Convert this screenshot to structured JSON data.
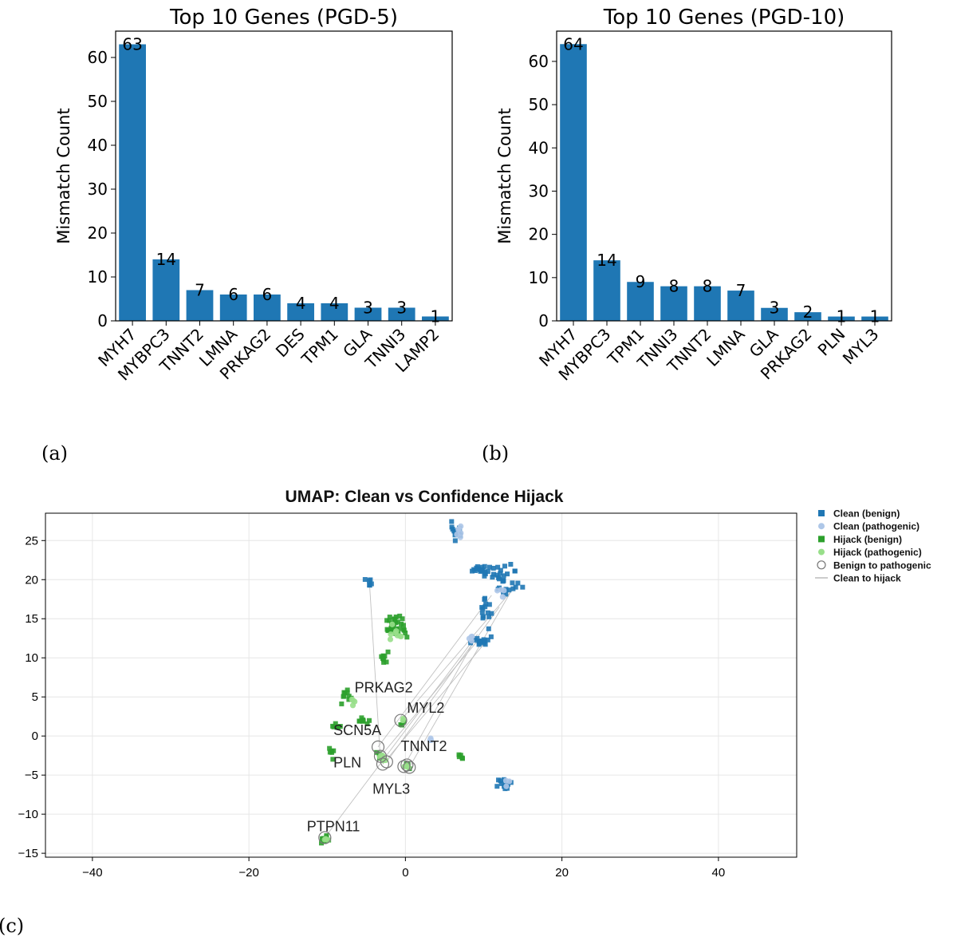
{
  "subfigure_labels": [
    "(a)",
    "(b)",
    "(c)"
  ],
  "chart_data": [
    {
      "type": "bar",
      "title": "Top 10 Genes (PGD-5)",
      "ylabel": "Mismatch Count",
      "xlabel": "",
      "categories": [
        "MYH7",
        "MYBPC3",
        "TNNT2",
        "LMNA",
        "PRKAG2",
        "DES",
        "TPM1",
        "GLA",
        "TNNI3",
        "LAMP2"
      ],
      "values": [
        63,
        14,
        7,
        6,
        6,
        4,
        4,
        3,
        3,
        1
      ],
      "data_labels": [
        "63",
        "14",
        "7",
        "6",
        "6",
        "4",
        "4",
        "3",
        "3",
        "1"
      ],
      "ylim": [
        0,
        66
      ],
      "yticks": [
        0,
        10,
        20,
        30,
        40,
        50,
        60
      ],
      "bar_color": "#1f77b4"
    },
    {
      "type": "bar",
      "title": "Top 10 Genes (PGD-10)",
      "ylabel": "Mismatch Count",
      "xlabel": "",
      "categories": [
        "MYH7",
        "MYBPC3",
        "TPM1",
        "TNNI3",
        "TNNT2",
        "LMNA",
        "GLA",
        "PRKAG2",
        "PLN",
        "MYL3"
      ],
      "values": [
        64,
        14,
        9,
        8,
        8,
        7,
        3,
        2,
        1,
        1
      ],
      "data_labels": [
        "64",
        "14",
        "9",
        "8",
        "8",
        "7",
        "3",
        "2",
        "1",
        "1"
      ],
      "ylim": [
        0,
        67
      ],
      "yticks": [
        0,
        10,
        20,
        30,
        40,
        50,
        60
      ],
      "bar_color": "#1f77b4"
    },
    {
      "type": "scatter",
      "title": "UMAP: Clean vs Confidence Hijack",
      "xlabel": "",
      "ylabel": "",
      "xlim": [
        -46,
        50
      ],
      "ylim": [
        -15.5,
        28.5
      ],
      "xticks": [
        -40,
        -20,
        0,
        20,
        40
      ],
      "xtick_labels": [
        "−40",
        "−20",
        "0",
        "20",
        "40"
      ],
      "yticks": [
        -15,
        -10,
        -5,
        0,
        5,
        10,
        15,
        20,
        25
      ],
      "ytick_labels": [
        "−15",
        "−10",
        "−5",
        "0",
        "5",
        "10",
        "15",
        "20",
        "25"
      ],
      "grid": true,
      "legend_position": "outside-right",
      "legend": [
        {
          "label": "Clean (benign)",
          "marker": "square",
          "color": "#1f77b4"
        },
        {
          "label": "Clean (pathogenic)",
          "marker": "dot",
          "color": "#aec7e8"
        },
        {
          "label": "Hijack (benign)",
          "marker": "square",
          "color": "#2ca02c"
        },
        {
          "label": "Hijack (pathogenic)",
          "marker": "dot",
          "color": "#98df8a"
        },
        {
          "label": "Benign to pathogenic",
          "marker": "ring",
          "color": "#777777"
        },
        {
          "label": "Clean to hijack",
          "marker": "line",
          "color": "#bbbbbb"
        }
      ],
      "clusters": [
        {
          "series": "Clean (benign)",
          "cx": 6.5,
          "cy": 26,
          "sx": 0.6,
          "sy": 0.9,
          "n": 16
        },
        {
          "series": "Clean (benign)",
          "cx": -4.6,
          "cy": 19.7,
          "sx": 0.3,
          "sy": 0.5,
          "n": 6
        },
        {
          "series": "Clean (benign)",
          "cx": 9.5,
          "cy": 21.2,
          "sx": 1.1,
          "sy": 0.5,
          "n": 20
        },
        {
          "series": "Clean (benign)",
          "cx": 13,
          "cy": 20,
          "sx": 1.4,
          "sy": 1.3,
          "n": 28
        },
        {
          "series": "Clean (benign)",
          "cx": 10,
          "cy": 16,
          "sx": 0.7,
          "sy": 1.3,
          "n": 14
        },
        {
          "series": "Clean (benign)",
          "cx": 9.8,
          "cy": 12.2,
          "sx": 1.0,
          "sy": 0.4,
          "n": 14
        },
        {
          "series": "Clean (benign)",
          "cx": 12.8,
          "cy": -6,
          "sx": 0.6,
          "sy": 0.6,
          "n": 14
        },
        {
          "series": "Clean (pathogenic)",
          "cx": 6.8,
          "cy": 25.8,
          "sx": 0.5,
          "sy": 0.6,
          "n": 6
        },
        {
          "series": "Clean (pathogenic)",
          "cx": 8.5,
          "cy": 12.5,
          "sx": 0.4,
          "sy": 0.4,
          "n": 4
        },
        {
          "series": "Clean (pathogenic)",
          "cx": 3.2,
          "cy": -0.5,
          "sx": 0.2,
          "sy": 0.3,
          "n": 3
        },
        {
          "series": "Clean (pathogenic)",
          "cx": 12,
          "cy": 18.5,
          "sx": 0.6,
          "sy": 0.6,
          "n": 4
        },
        {
          "series": "Clean (pathogenic)",
          "cx": 13.2,
          "cy": -5.8,
          "sx": 0.4,
          "sy": 0.4,
          "n": 3
        },
        {
          "series": "Hijack (benign)",
          "cx": -1,
          "cy": 14,
          "sx": 1.1,
          "sy": 0.9,
          "n": 30
        },
        {
          "series": "Hijack (benign)",
          "cx": -2.6,
          "cy": 9.9,
          "sx": 0.5,
          "sy": 0.5,
          "n": 8
        },
        {
          "series": "Hijack (benign)",
          "cx": -7.6,
          "cy": 4.9,
          "sx": 0.5,
          "sy": 0.7,
          "n": 10
        },
        {
          "series": "Hijack (benign)",
          "cx": -5.5,
          "cy": 2,
          "sx": 0.6,
          "sy": 0.4,
          "n": 8
        },
        {
          "series": "Hijack (benign)",
          "cx": -8.6,
          "cy": 1.2,
          "sx": 0.4,
          "sy": 0.3,
          "n": 8
        },
        {
          "series": "Hijack (benign)",
          "cx": -9.4,
          "cy": -2.3,
          "sx": 0.3,
          "sy": 0.4,
          "n": 6
        },
        {
          "series": "Hijack (benign)",
          "cx": 7.1,
          "cy": -2.6,
          "sx": 0.25,
          "sy": 0.35,
          "n": 5
        },
        {
          "series": "Hijack (benign)",
          "cx": -10.3,
          "cy": -13.2,
          "sx": 0.4,
          "sy": 0.5,
          "n": 8
        },
        {
          "series": "Hijack (benign)",
          "cx": -3.3,
          "cy": -2.3,
          "sx": 0.4,
          "sy": 0.5,
          "n": 5
        },
        {
          "series": "Hijack (benign)",
          "cx": -0.3,
          "cy": 1.7,
          "sx": 0.3,
          "sy": 0.3,
          "n": 3
        },
        {
          "series": "Hijack (benign)",
          "cx": 0.2,
          "cy": -4,
          "sx": 0.4,
          "sy": 0.3,
          "n": 4
        },
        {
          "series": "Hijack (pathogenic)",
          "cx": -1.4,
          "cy": 13,
          "sx": 0.8,
          "sy": 0.8,
          "n": 8
        },
        {
          "series": "Hijack (pathogenic)",
          "cx": -3,
          "cy": -2.5,
          "sx": 0.4,
          "sy": 0.6,
          "n": 5
        },
        {
          "series": "Hijack (pathogenic)",
          "cx": 0.3,
          "cy": -3.9,
          "sx": 0.4,
          "sy": 0.3,
          "n": 5
        },
        {
          "series": "Hijack (pathogenic)",
          "cx": -6.8,
          "cy": 4.3,
          "sx": 0.4,
          "sy": 0.5,
          "n": 4
        },
        {
          "series": "Hijack (pathogenic)",
          "cx": -10,
          "cy": -13,
          "sx": 0.3,
          "sy": 0.3,
          "n": 3
        },
        {
          "series": "Hijack (pathogenic)",
          "cx": -0.2,
          "cy": 2,
          "sx": 0.2,
          "sy": 0.2,
          "n": 2
        }
      ],
      "rings": [
        {
          "x": -0.6,
          "y": 2.0
        },
        {
          "x": -3.5,
          "y": -1.4
        },
        {
          "x": -3.2,
          "y": -2.6
        },
        {
          "x": -2.9,
          "y": -3.6
        },
        {
          "x": -2.4,
          "y": -3.3
        },
        {
          "x": -0.2,
          "y": -3.9
        },
        {
          "x": 0.2,
          "y": -3.7
        },
        {
          "x": 0.5,
          "y": -4.0
        },
        {
          "x": -10.3,
          "y": -13.0
        }
      ],
      "links": [
        [
          [
            -4.6,
            19.7
          ],
          [
            -3.2,
            -3.0
          ]
        ],
        [
          [
            14.2,
            19.3
          ],
          [
            -0.6,
            2.0
          ]
        ],
        [
          [
            11,
            18
          ],
          [
            -3.5,
            -1.4
          ]
        ],
        [
          [
            9.5,
            12.5
          ],
          [
            -3.2,
            -2.6
          ]
        ],
        [
          [
            10.5,
            12.3
          ],
          [
            -2.9,
            -3.6
          ]
        ],
        [
          [
            8.8,
            12.2
          ],
          [
            -0.2,
            -3.9
          ]
        ],
        [
          [
            13.5,
            18.5
          ],
          [
            0.5,
            -4.0
          ]
        ],
        [
          [
            9.2,
            13.0
          ],
          [
            -10.3,
            -13.0
          ]
        ],
        [
          [
            12.0,
            16.5
          ],
          [
            -2.4,
            -3.3
          ]
        ]
      ],
      "annotations": [
        {
          "text": "PRKAG2",
          "x": -6.5,
          "y": 5.6
        },
        {
          "text": "MYL2",
          "x": 0.2,
          "y": 3.0
        },
        {
          "text": "SCN5A",
          "x": -9.2,
          "y": 0.1
        },
        {
          "text": "TNNT2",
          "x": -0.6,
          "y": -1.9
        },
        {
          "text": "PLN",
          "x": -9.2,
          "y": -4.0
        },
        {
          "text": "MYL3",
          "x": -4.2,
          "y": -7.4
        },
        {
          "text": "PTPN11",
          "x": -12.6,
          "y": -12.2
        }
      ]
    }
  ]
}
